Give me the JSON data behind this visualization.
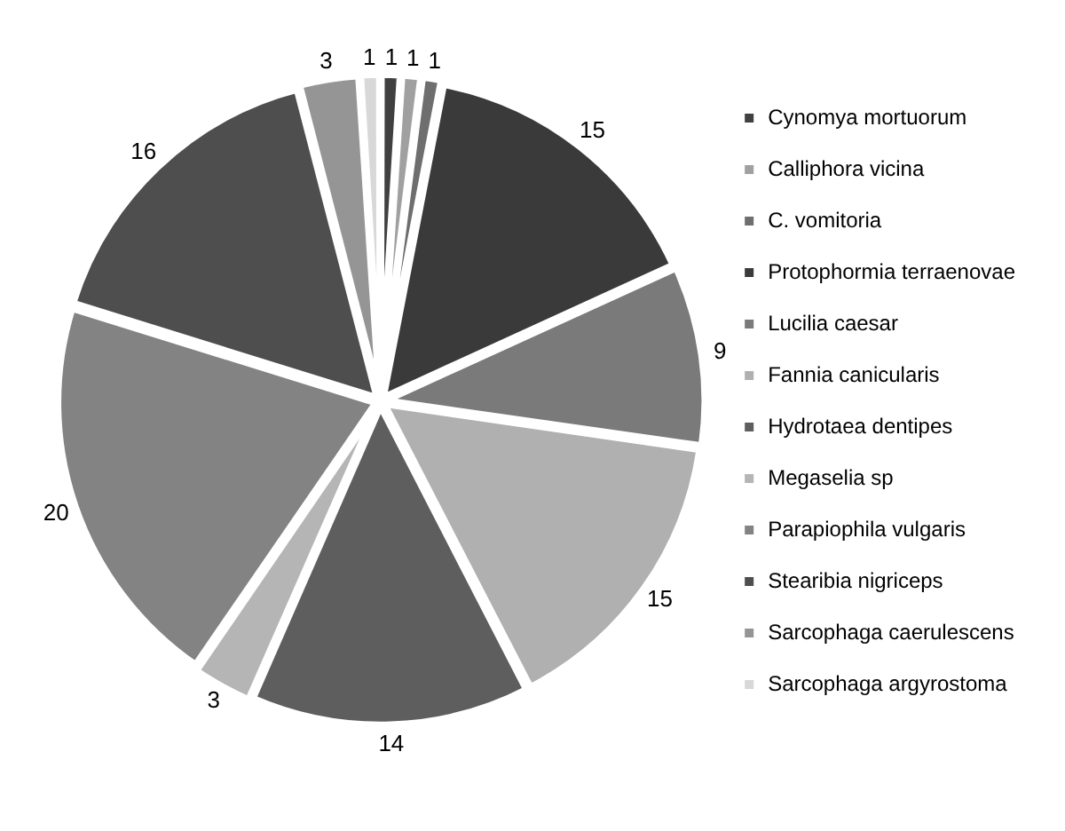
{
  "chart_data": {
    "type": "pie",
    "categories": [
      "Cynomya mortuorum",
      "Calliphora vicina",
      "C. vomitoria",
      "Protophormia terraenovae",
      "Lucilia caesar",
      "Fannia canicularis",
      "Hydrotaea dentipes",
      "Megaselia sp",
      "Parapiophila vulgaris",
      "Stearibia nigriceps",
      "Sarcophaga caerulescens",
      "Sarcophaga argyrostoma"
    ],
    "values": [
      1,
      1,
      1,
      15,
      9,
      15,
      14,
      3,
      20,
      16,
      3,
      1
    ],
    "colors": [
      "#404040",
      "#a0a0a0",
      "#6e6e6e",
      "#3a3a3a",
      "#7a7a7a",
      "#b0b0b0",
      "#5e5e5e",
      "#b5b5b5",
      "#838383",
      "#4e4e4e",
      "#959595",
      "#d8d8d8"
    ],
    "data_labels": true,
    "legend": "right"
  }
}
